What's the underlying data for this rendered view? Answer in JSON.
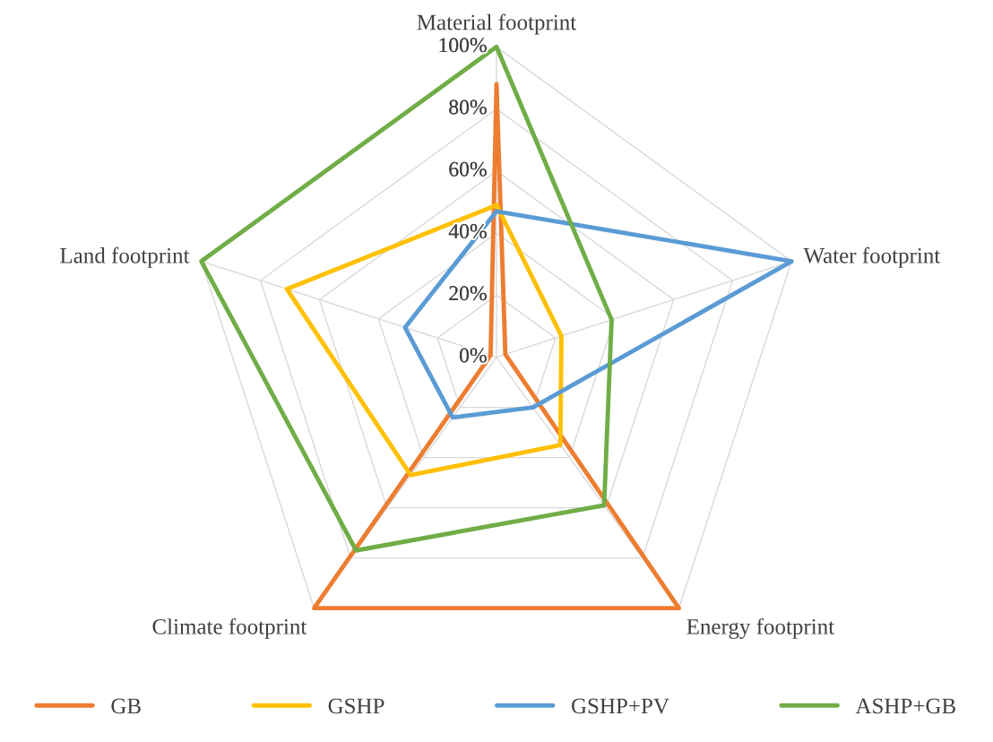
{
  "chart_data": {
    "type": "radar",
    "categories": [
      "Material footprint",
      "Water footprint",
      "Energy footprint",
      "Climate footprint",
      "Land footprint"
    ],
    "series": [
      {
        "name": "GB",
        "color": "#ed7d31",
        "values": [
          88,
          3,
          100,
          100,
          2
        ]
      },
      {
        "name": "GSHP",
        "color": "#ffc000",
        "values": [
          49,
          22,
          35,
          47,
          71
        ]
      },
      {
        "name": "GSHP+PV",
        "color": "#5b9bd5",
        "values": [
          47,
          100,
          20,
          24,
          31
        ]
      },
      {
        "name": "ASHP+GB",
        "color": "#70ad47",
        "values": [
          100,
          39,
          59,
          77,
          100
        ]
      }
    ],
    "ylim": [
      0,
      100
    ],
    "yticks": [
      {
        "value": 0,
        "label": "0%"
      },
      {
        "value": 20,
        "label": "20%"
      },
      {
        "value": 40,
        "label": "40%"
      },
      {
        "value": 60,
        "label": "60%"
      },
      {
        "value": 80,
        "label": "80%"
      },
      {
        "value": 100,
        "label": "100%"
      }
    ],
    "grid": true,
    "legend": "bottom",
    "marker": "none"
  }
}
